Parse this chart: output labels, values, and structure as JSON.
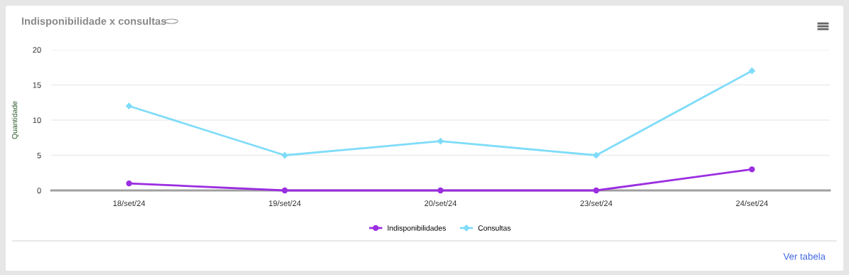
{
  "chart_data": {
    "type": "line",
    "title": "Indisponibilidade x consultas",
    "ylabel": "Quantidade",
    "categories": [
      "18/set/24",
      "19/set/24",
      "20/set/24",
      "23/set/24",
      "24/set/24"
    ],
    "series": [
      {
        "name": "Indisponibilidades",
        "color": "#9b2ee0",
        "marker": "circle",
        "values": [
          1,
          0,
          0,
          0,
          3
        ]
      },
      {
        "name": "Consultas",
        "color": "#7fdcf9",
        "marker": "diamond",
        "values": [
          12,
          5,
          7,
          5,
          17
        ]
      }
    ],
    "ylim": [
      0,
      20
    ],
    "yticks": [
      0,
      5,
      10,
      15,
      20
    ],
    "grid": "y",
    "legend": "bottom",
    "line_style": "solid",
    "annotations": [
      "Ver tabela"
    ]
  }
}
